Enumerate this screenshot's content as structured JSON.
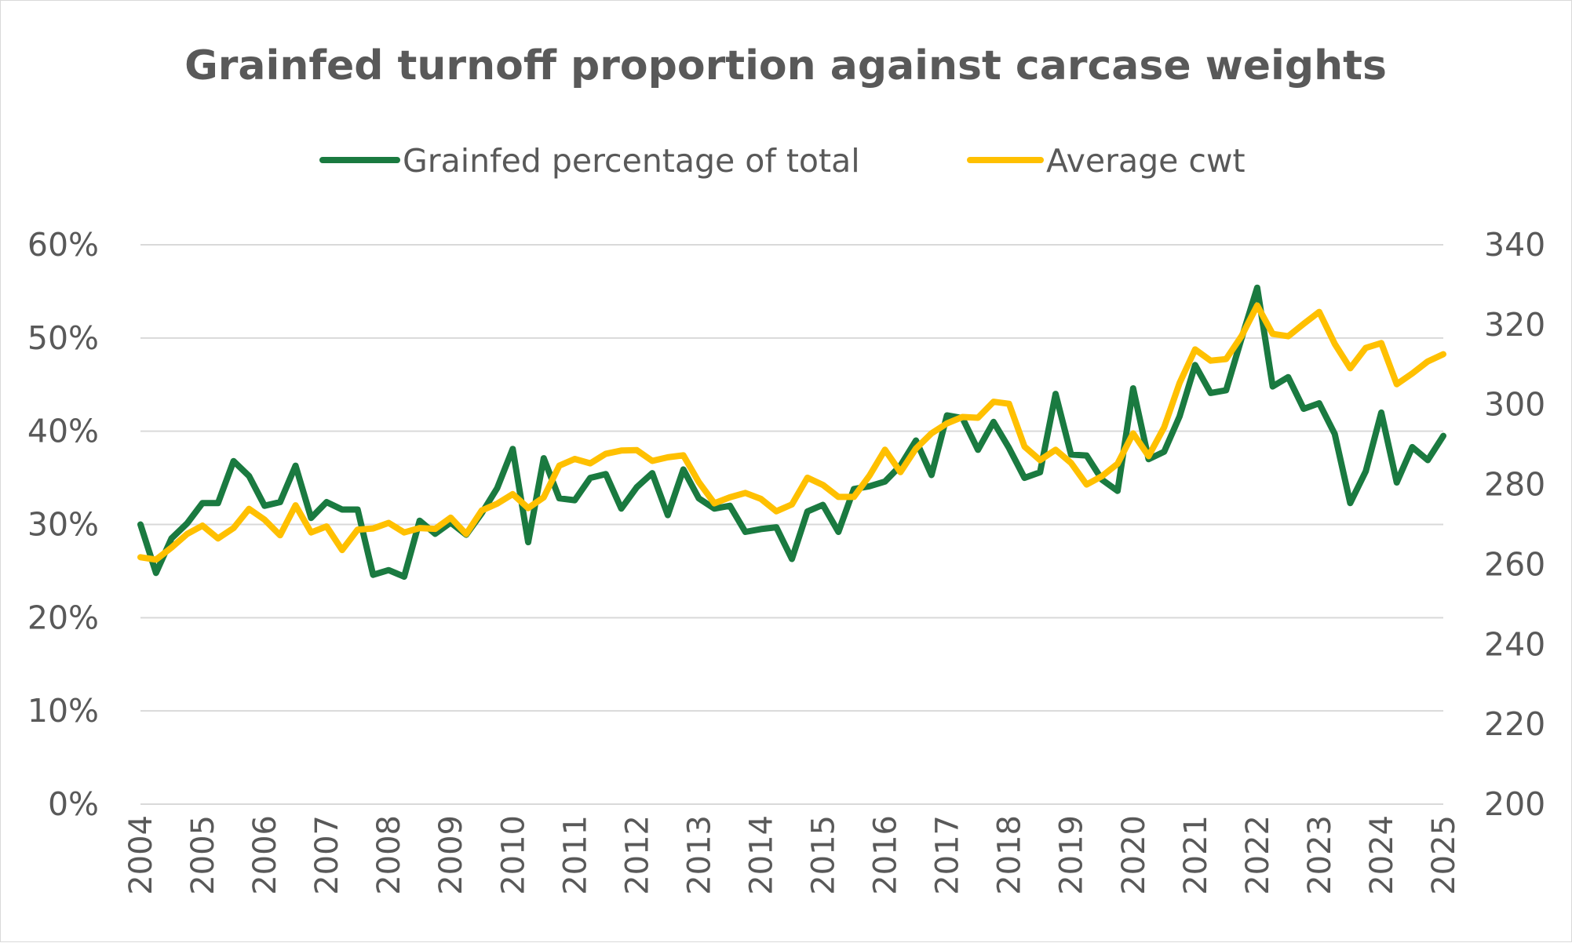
{
  "chart_data": {
    "type": "line",
    "title": "Grainfed turnoff proportion against carcase weights",
    "legend_position": "top",
    "grid": true,
    "y_left": {
      "ticks": [
        "0%",
        "10%",
        "20%",
        "30%",
        "40%",
        "50%",
        "60%"
      ],
      "range": [
        0,
        60
      ]
    },
    "y_right": {
      "ticks": [
        "200",
        "220",
        "240",
        "260",
        "280",
        "300",
        "320",
        "340"
      ],
      "range": [
        200,
        340
      ]
    },
    "x_range": [
      2004,
      2025
    ],
    "x_ticks": [
      "2004",
      "2005",
      "2006",
      "2007",
      "2008",
      "2009",
      "2010",
      "2011",
      "2012",
      "2013",
      "2014",
      "2015",
      "2016",
      "2017",
      "2018",
      "2019",
      "2020",
      "2021",
      "2022",
      "2023",
      "2024",
      "2025"
    ],
    "series": [
      {
        "name": "Grainfed percentage of total",
        "axis": "left",
        "color": "#1a7a40",
        "values": [
          30.0,
          24.8,
          28.5,
          30.1,
          32.3,
          32.3,
          36.8,
          35.2,
          32.0,
          32.4,
          36.3,
          30.7,
          32.4,
          31.6,
          31.6,
          24.6,
          25.1,
          24.4,
          30.4,
          29.0,
          30.2,
          28.9,
          31.2,
          33.9,
          38.1,
          28.1,
          37.1,
          32.8,
          32.6,
          35.0,
          35.4,
          31.7,
          34.0,
          35.5,
          31.0,
          35.9,
          32.8,
          31.7,
          32.0,
          29.2,
          29.5,
          29.7,
          26.3,
          31.4,
          32.1,
          29.2,
          33.8,
          34.1,
          34.6,
          36.3,
          39.0,
          35.3,
          41.7,
          41.4,
          38.0,
          41.0,
          38.2,
          35.0,
          35.6,
          44.0,
          37.5,
          37.4,
          34.8,
          33.6,
          44.6,
          37.0,
          37.8,
          41.6,
          47.1,
          44.1,
          44.4,
          50.0,
          55.4,
          44.8,
          45.8,
          42.4,
          43.0,
          39.7,
          32.3,
          35.7,
          42.0,
          34.5,
          38.3,
          36.9,
          39.5
        ]
      },
      {
        "name": "Average cwt",
        "axis": "right",
        "color": "#ffc000",
        "values": [
          261.8,
          261.2,
          264.2,
          267.6,
          269.7,
          266.5,
          269.1,
          273.9,
          271.2,
          267.3,
          274.8,
          268.0,
          269.5,
          263.6,
          268.7,
          269.0,
          270.4,
          268.0,
          269.1,
          268.9,
          271.7,
          267.6,
          273.5,
          275.2,
          277.6,
          274.1,
          276.8,
          284.7,
          286.4,
          285.3,
          287.7,
          288.5,
          288.6,
          285.9,
          286.8,
          287.3,
          280.6,
          275.3,
          276.8,
          277.9,
          276.4,
          273.3,
          275.0,
          281.7,
          279.9,
          276.9,
          276.9,
          282.2,
          288.7,
          283.1,
          289.0,
          292.8,
          295.3,
          296.9,
          296.7,
          300.7,
          300.2,
          289.5,
          286.1,
          288.7,
          285.4,
          280.0,
          282.1,
          285.2,
          292.8,
          287.1,
          294.3,
          305.4,
          313.8,
          311.0,
          311.4,
          317.2,
          324.8,
          317.7,
          317.1,
          320.2,
          323.2,
          315.2,
          309.1,
          314.2,
          315.4,
          305.1,
          307.8,
          310.8,
          312.6
        ]
      }
    ]
  }
}
